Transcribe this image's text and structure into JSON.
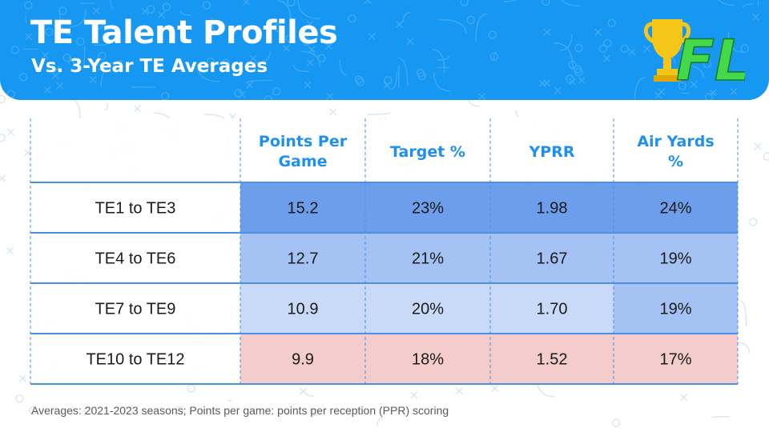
{
  "header": {
    "title": "TE Talent Profiles",
    "subtitle": "Vs. 3-Year TE Averages",
    "logo_text": "FL"
  },
  "footnote": "Averages: 2021-2023 seasons; Points per game: points per reception (PPR) scoring",
  "colors": {
    "header_bg": "#1597f2",
    "header_text": "#ffffff",
    "column_header_text": "#1f8ff0",
    "border_blue": "#4a90e8",
    "shade_1": "#6d9eeb",
    "shade_2": "#a4c2f4",
    "shade_3": "#c9daf8",
    "shade_red": "#f4cccc",
    "logo_gold": "#f5c518",
    "logo_green": "#43d94b"
  },
  "chart_data": {
    "type": "table",
    "columns": [
      "Points Per Game",
      "Target %",
      "YPRR",
      "Air Yards %"
    ],
    "rows": [
      {
        "label": "TE1 to TE3",
        "values": [
          "15.2",
          "23%",
          "1.98",
          "24%"
        ],
        "shades": [
          "shade_1",
          "shade_1",
          "shade_1",
          "shade_1"
        ]
      },
      {
        "label": "TE4 to TE6",
        "values": [
          "12.7",
          "21%",
          "1.67",
          "19%"
        ],
        "shades": [
          "shade_2",
          "shade_2",
          "shade_2",
          "shade_2"
        ]
      },
      {
        "label": "TE7 to TE9",
        "values": [
          "10.9",
          "20%",
          "1.70",
          "19%"
        ],
        "shades": [
          "shade_3",
          "shade_3",
          "shade_3",
          "shade_2"
        ]
      },
      {
        "label": "TE10 to TE12",
        "values": [
          "9.9",
          "18%",
          "1.52",
          "17%"
        ],
        "shades": [
          "shade_red",
          "shade_red",
          "shade_red",
          "shade_red"
        ]
      }
    ]
  }
}
